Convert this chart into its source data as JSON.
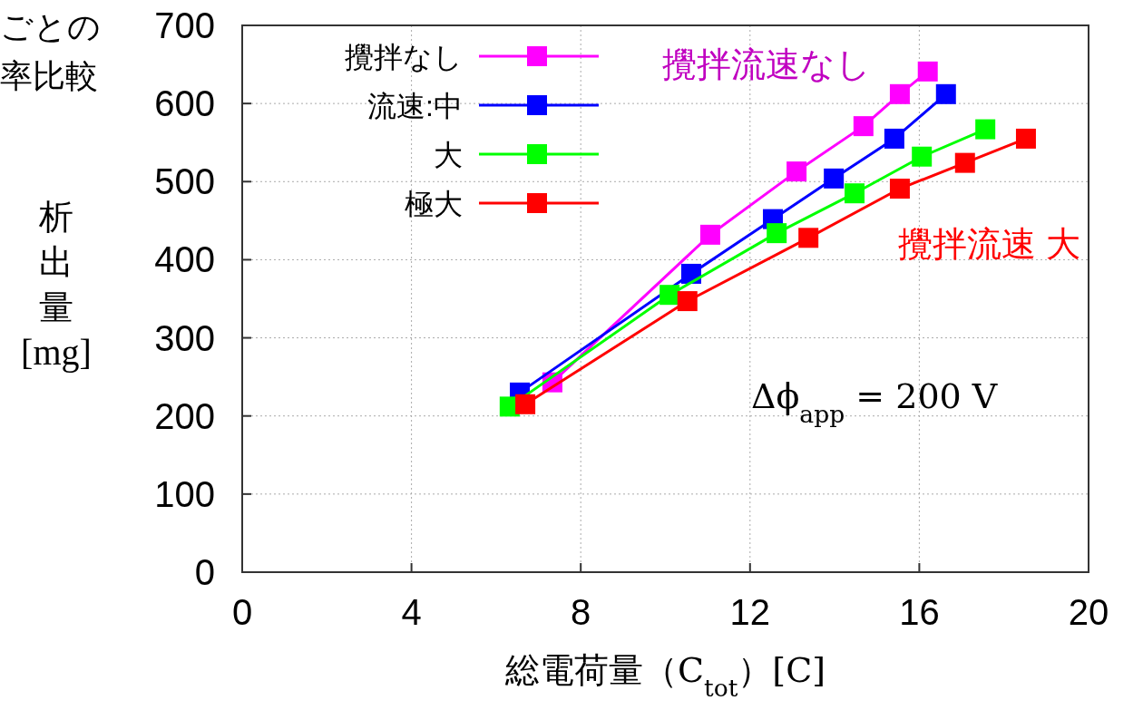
{
  "chart_data": {
    "type": "line",
    "xlabel": "総電荷量（C$_{tot}$）[C]",
    "ylabel": "析出量[mg]",
    "xlim": [
      0,
      20
    ],
    "xticks": [
      0,
      4,
      8,
      12,
      16,
      20
    ],
    "ylim": [
      0,
      700
    ],
    "yticks": [
      0,
      100,
      200,
      300,
      400,
      500,
      600,
      700
    ],
    "grid": true,
    "legend": "top left",
    "marker": "square",
    "line_style": "solid",
    "series": [
      {
        "name": "攪拌なし",
        "color": "#ff00ff",
        "x": [
          7.33,
          11.06,
          13.1,
          14.68,
          15.54,
          16.2
        ],
        "values": [
          243,
          432,
          513,
          571,
          612,
          641
        ]
      },
      {
        "name": "流速:中",
        "color": "#0000ff",
        "x": [
          6.56,
          10.61,
          12.54,
          13.98,
          15.41,
          16.63
        ],
        "values": [
          230,
          382,
          452,
          504,
          555,
          612
        ]
      },
      {
        "name": "大",
        "color": "#00ff00",
        "x": [
          6.32,
          10.1,
          12.63,
          14.47,
          16.06,
          17.56
        ],
        "values": [
          212,
          355,
          434,
          485,
          532,
          567
        ]
      },
      {
        "name": "極大",
        "color": "#ff0000",
        "x": [
          6.69,
          10.52,
          13.38,
          15.54,
          17.08,
          18.52
        ],
        "values": [
          215,
          347,
          428,
          491,
          524,
          555
        ]
      }
    ],
    "annotations": [
      "ごとの",
      "率比較",
      "攪拌流速なし",
      "攪拌流速 大",
      "Δϕ$_{app}$ = 200 V"
    ]
  }
}
